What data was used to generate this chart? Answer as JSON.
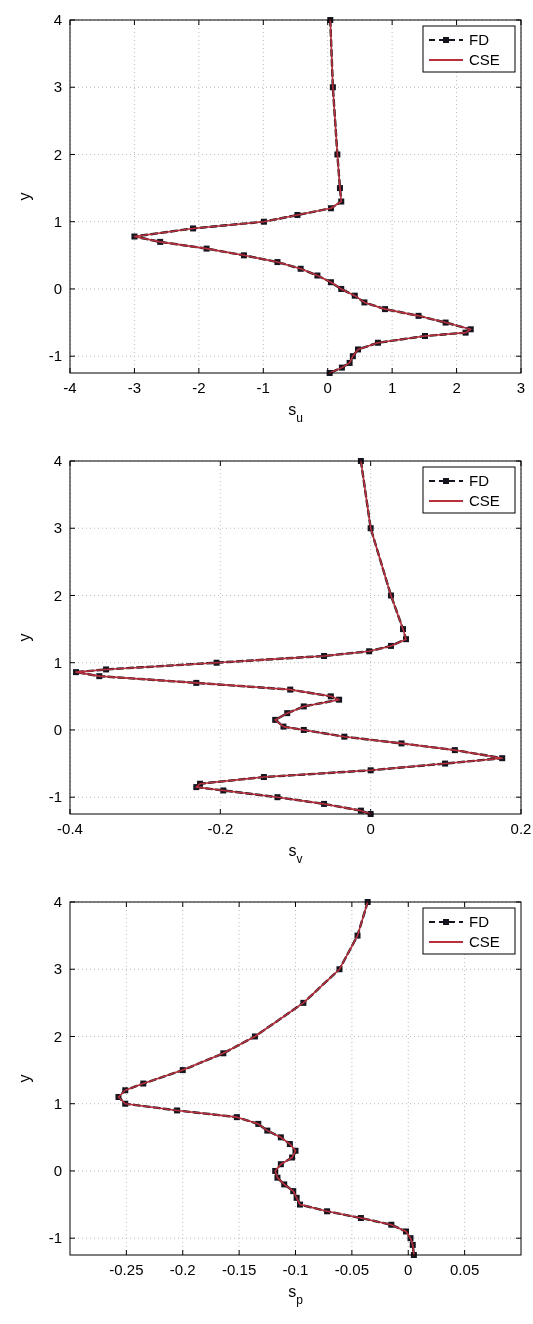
{
  "chart_data": [
    {
      "type": "line",
      "xlabel": "s$_{u}$",
      "ylabel": "y",
      "xlim": [
        -4,
        3
      ],
      "ylim": [
        -1.25,
        4
      ],
      "xticks": [
        -4,
        -3,
        -2,
        -1,
        0,
        1,
        2,
        3
      ],
      "yticks": [
        -1,
        0,
        1,
        2,
        3,
        4
      ],
      "grid": true,
      "legend": "top right",
      "series": [
        {
          "name": "FD",
          "color": "#151520",
          "marker": "square",
          "line_style": "dashed",
          "x": [
            0.04,
            0.08,
            0.15,
            0.19,
            0.21,
            0.05,
            -0.47,
            -0.99,
            -2.09,
            -3.0,
            -2.6,
            -1.88,
            -1.3,
            -0.78,
            -0.42,
            -0.16,
            0.05,
            0.21,
            0.42,
            0.57,
            0.89,
            1.41,
            1.83,
            2.22,
            2.14,
            1.51,
            0.78,
            0.47,
            0.39,
            0.34,
            0.22,
            0.03
          ],
          "values": [
            4,
            3,
            2,
            1.5,
            1.3,
            1.2,
            1.1,
            1.0,
            0.9,
            0.78,
            0.7,
            0.6,
            0.5,
            0.4,
            0.3,
            0.2,
            0.1,
            0,
            -0.1,
            -0.2,
            -0.3,
            -0.4,
            -0.5,
            -0.6,
            -0.65,
            -0.7,
            -0.8,
            -0.9,
            -1.0,
            -1.1,
            -1.17,
            -1.25
          ]
        },
        {
          "name": "CSE",
          "color": "#b8303c",
          "marker": "none",
          "line_style": "solid",
          "x": [
            0.04,
            0.08,
            0.15,
            0.19,
            0.21,
            0.05,
            -0.47,
            -0.99,
            -2.09,
            -3.0,
            -2.6,
            -1.88,
            -1.3,
            -0.78,
            -0.42,
            -0.16,
            0.05,
            0.21,
            0.42,
            0.57,
            0.89,
            1.41,
            1.83,
            2.22,
            2.14,
            1.51,
            0.78,
            0.47,
            0.39,
            0.34,
            0.22,
            0.03
          ],
          "values": [
            4,
            3,
            2,
            1.5,
            1.3,
            1.2,
            1.1,
            1.0,
            0.9,
            0.78,
            0.7,
            0.6,
            0.5,
            0.4,
            0.3,
            0.2,
            0.1,
            0,
            -0.1,
            -0.2,
            -0.3,
            -0.4,
            -0.5,
            -0.6,
            -0.65,
            -0.7,
            -0.8,
            -0.9,
            -1.0,
            -1.1,
            -1.17,
            -1.25
          ]
        }
      ]
    },
    {
      "type": "line",
      "xlabel": "s$_{v}$",
      "ylabel": "y",
      "xlim": [
        -0.4,
        0.2
      ],
      "ylim": [
        -1.25,
        4
      ],
      "xticks": [
        -0.4,
        -0.2,
        0,
        0.2
      ],
      "yticks": [
        -1,
        0,
        1,
        2,
        3,
        4
      ],
      "grid": true,
      "legend": "top right",
      "series": [
        {
          "name": "FD",
          "color": "#151520",
          "marker": "square",
          "line_style": "dashed",
          "x": [
            -0.013,
            0,
            0.027,
            0.043,
            0.047,
            0.027,
            -0.002,
            -0.062,
            -0.205,
            -0.352,
            -0.392,
            -0.361,
            -0.232,
            -0.107,
            -0.053,
            -0.042,
            -0.089,
            -0.111,
            -0.127,
            -0.116,
            -0.089,
            -0.035,
            0.041,
            0.112,
            0.175,
            0.099,
            0,
            -0.142,
            -0.227,
            -0.232,
            -0.196,
            -0.124,
            -0.062,
            -0.013,
            0
          ],
          "values": [
            4,
            3,
            2,
            1.5,
            1.35,
            1.25,
            1.17,
            1.1,
            1.0,
            0.9,
            0.86,
            0.8,
            0.7,
            0.6,
            0.5,
            0.45,
            0.35,
            0.25,
            0.15,
            0.05,
            0,
            -0.1,
            -0.2,
            -0.3,
            -0.42,
            -0.5,
            -0.6,
            -0.7,
            -0.8,
            -0.85,
            -0.9,
            -1.0,
            -1.1,
            -1.2,
            -1.25
          ]
        },
        {
          "name": "CSE",
          "color": "#b8303c",
          "marker": "none",
          "line_style": "solid",
          "x": [
            -0.013,
            0,
            0.027,
            0.043,
            0.047,
            0.027,
            -0.002,
            -0.062,
            -0.205,
            -0.352,
            -0.392,
            -0.361,
            -0.232,
            -0.107,
            -0.053,
            -0.042,
            -0.089,
            -0.111,
            -0.127,
            -0.116,
            -0.089,
            -0.035,
            0.041,
            0.112,
            0.175,
            0.099,
            0,
            -0.142,
            -0.227,
            -0.232,
            -0.196,
            -0.124,
            -0.062,
            -0.013,
            0
          ],
          "values": [
            4,
            3,
            2,
            1.5,
            1.35,
            1.25,
            1.17,
            1.1,
            1.0,
            0.9,
            0.86,
            0.8,
            0.7,
            0.6,
            0.5,
            0.45,
            0.35,
            0.25,
            0.15,
            0.05,
            0,
            -0.1,
            -0.2,
            -0.3,
            -0.42,
            -0.5,
            -0.6,
            -0.7,
            -0.8,
            -0.85,
            -0.9,
            -1.0,
            -1.1,
            -1.2,
            -1.25
          ]
        }
      ]
    },
    {
      "type": "line",
      "xlabel": "s$_{p}$",
      "ylabel": "y",
      "xlim": [
        -0.3,
        0.1
      ],
      "ylim": [
        -1.25,
        4
      ],
      "xticks": [
        -0.25,
        -0.2,
        -0.15,
        -0.1,
        -0.05,
        0,
        0.05
      ],
      "yticks": [
        -1,
        0,
        1,
        2,
        3,
        4
      ],
      "grid": true,
      "legend": "top right",
      "series": [
        {
          "name": "FD",
          "color": "#151520",
          "marker": "square",
          "line_style": "dashed",
          "x": [
            -0.036,
            -0.045,
            -0.061,
            -0.093,
            -0.136,
            -0.164,
            -0.2,
            -0.235,
            -0.251,
            -0.257,
            -0.251,
            -0.205,
            -0.152,
            -0.133,
            -0.125,
            -0.113,
            -0.105,
            -0.1,
            -0.103,
            -0.113,
            -0.118,
            -0.116,
            -0.11,
            -0.102,
            -0.099,
            -0.096,
            -0.072,
            -0.042,
            -0.015,
            -0.002,
            0.002,
            0.004,
            0.005
          ],
          "values": [
            4,
            3.5,
            3,
            2.5,
            2,
            1.75,
            1.5,
            1.3,
            1.2,
            1.1,
            1.0,
            0.9,
            0.8,
            0.7,
            0.6,
            0.5,
            0.4,
            0.3,
            0.2,
            0.1,
            0,
            -0.1,
            -0.2,
            -0.3,
            -0.4,
            -0.5,
            -0.6,
            -0.7,
            -0.8,
            -0.9,
            -1.0,
            -1.1,
            -1.25
          ]
        },
        {
          "name": "CSE",
          "color": "#b8303c",
          "marker": "none",
          "line_style": "solid",
          "x": [
            -0.036,
            -0.045,
            -0.061,
            -0.093,
            -0.136,
            -0.164,
            -0.2,
            -0.235,
            -0.251,
            -0.257,
            -0.251,
            -0.205,
            -0.152,
            -0.133,
            -0.125,
            -0.113,
            -0.105,
            -0.1,
            -0.103,
            -0.113,
            -0.118,
            -0.116,
            -0.11,
            -0.102,
            -0.099,
            -0.096,
            -0.072,
            -0.042,
            -0.015,
            -0.002,
            0.002,
            0.004,
            0.005
          ],
          "values": [
            4,
            3.5,
            3,
            2.5,
            2,
            1.75,
            1.5,
            1.3,
            1.2,
            1.1,
            1.0,
            0.9,
            0.8,
            0.7,
            0.6,
            0.5,
            0.4,
            0.3,
            0.2,
            0.1,
            0,
            -0.1,
            -0.2,
            -0.3,
            -0.4,
            -0.5,
            -0.6,
            -0.7,
            -0.8,
            -0.9,
            -1.0,
            -1.1,
            -1.25
          ]
        }
      ]
    }
  ]
}
